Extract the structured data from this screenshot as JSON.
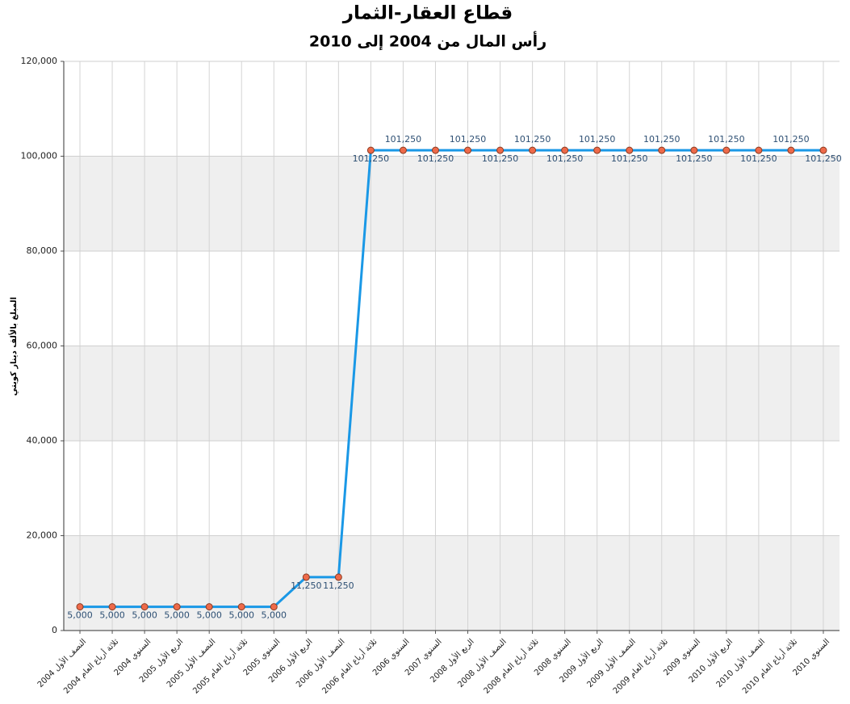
{
  "chart_data": {
    "type": "line",
    "title": "قطاع العقار-الثمار",
    "subtitle": "رأس المال من 2004 إلى 2010",
    "y_label": "المبلغ بالألف دينار كويتي",
    "categories": [
      "النصف الأول 2004",
      "ثلاثة أرباع العام 2004",
      "السنوي 2004",
      "الربع الأول 2005",
      "النصف الأول 2005",
      "ثلاثة أرباع العام 2005",
      "السنوي 2005",
      "الربع الأول 2006",
      "النصف الأول 2006",
      "ثلاثة أرباع العام 2006",
      "السنوي 2006",
      "السنوي 2007",
      "الربع الأول 2008",
      "النصف الأول 2008",
      "ثلاثة أرباع العام 2008",
      "السنوي 2008",
      "الربع الأول 2009",
      "النصف الأول 2009",
      "ثلاثة أرباع العام 2009",
      "السنوي 2009",
      "الربع الأول 2010",
      "النصف الأول 2010",
      "ثلاثة أرباع العام 2010",
      "السنوي 2010"
    ],
    "values": [
      5000,
      5000,
      5000,
      5000,
      5000,
      5000,
      5000,
      11250,
      11250,
      101250,
      101250,
      101250,
      101250,
      101250,
      101250,
      101250,
      101250,
      101250,
      101250,
      101250,
      101250,
      101250,
      101250,
      101250
    ],
    "value_labels": [
      "5,000",
      "5,000",
      "5,000",
      "5,000",
      "5,000",
      "5,000",
      "5,000",
      "11,250",
      "11,250",
      "101,250",
      "101,250",
      "101,250",
      "101,250",
      "101,250",
      "101,250",
      "101,250",
      "101,250",
      "101,250",
      "101,250",
      "101,250",
      "101,250",
      "101,250",
      "101,250",
      "101,250"
    ],
    "color": "#1a98e6",
    "marker_color": "#ee6a4a",
    "ylim": [
      0,
      120000
    ],
    "yticks": [
      0,
      {
        "value": 20000,
        "label": "20,000"
      },
      {
        "value": 40000,
        "label": "40,000"
      },
      {
        "value": 60000,
        "label": "60,000"
      },
      {
        "value": 80000,
        "label": "80,000"
      },
      {
        "value": 100000,
        "label": "100,000"
      },
      {
        "value": 120000,
        "label": "120,000"
      }
    ],
    "grid": true
  }
}
